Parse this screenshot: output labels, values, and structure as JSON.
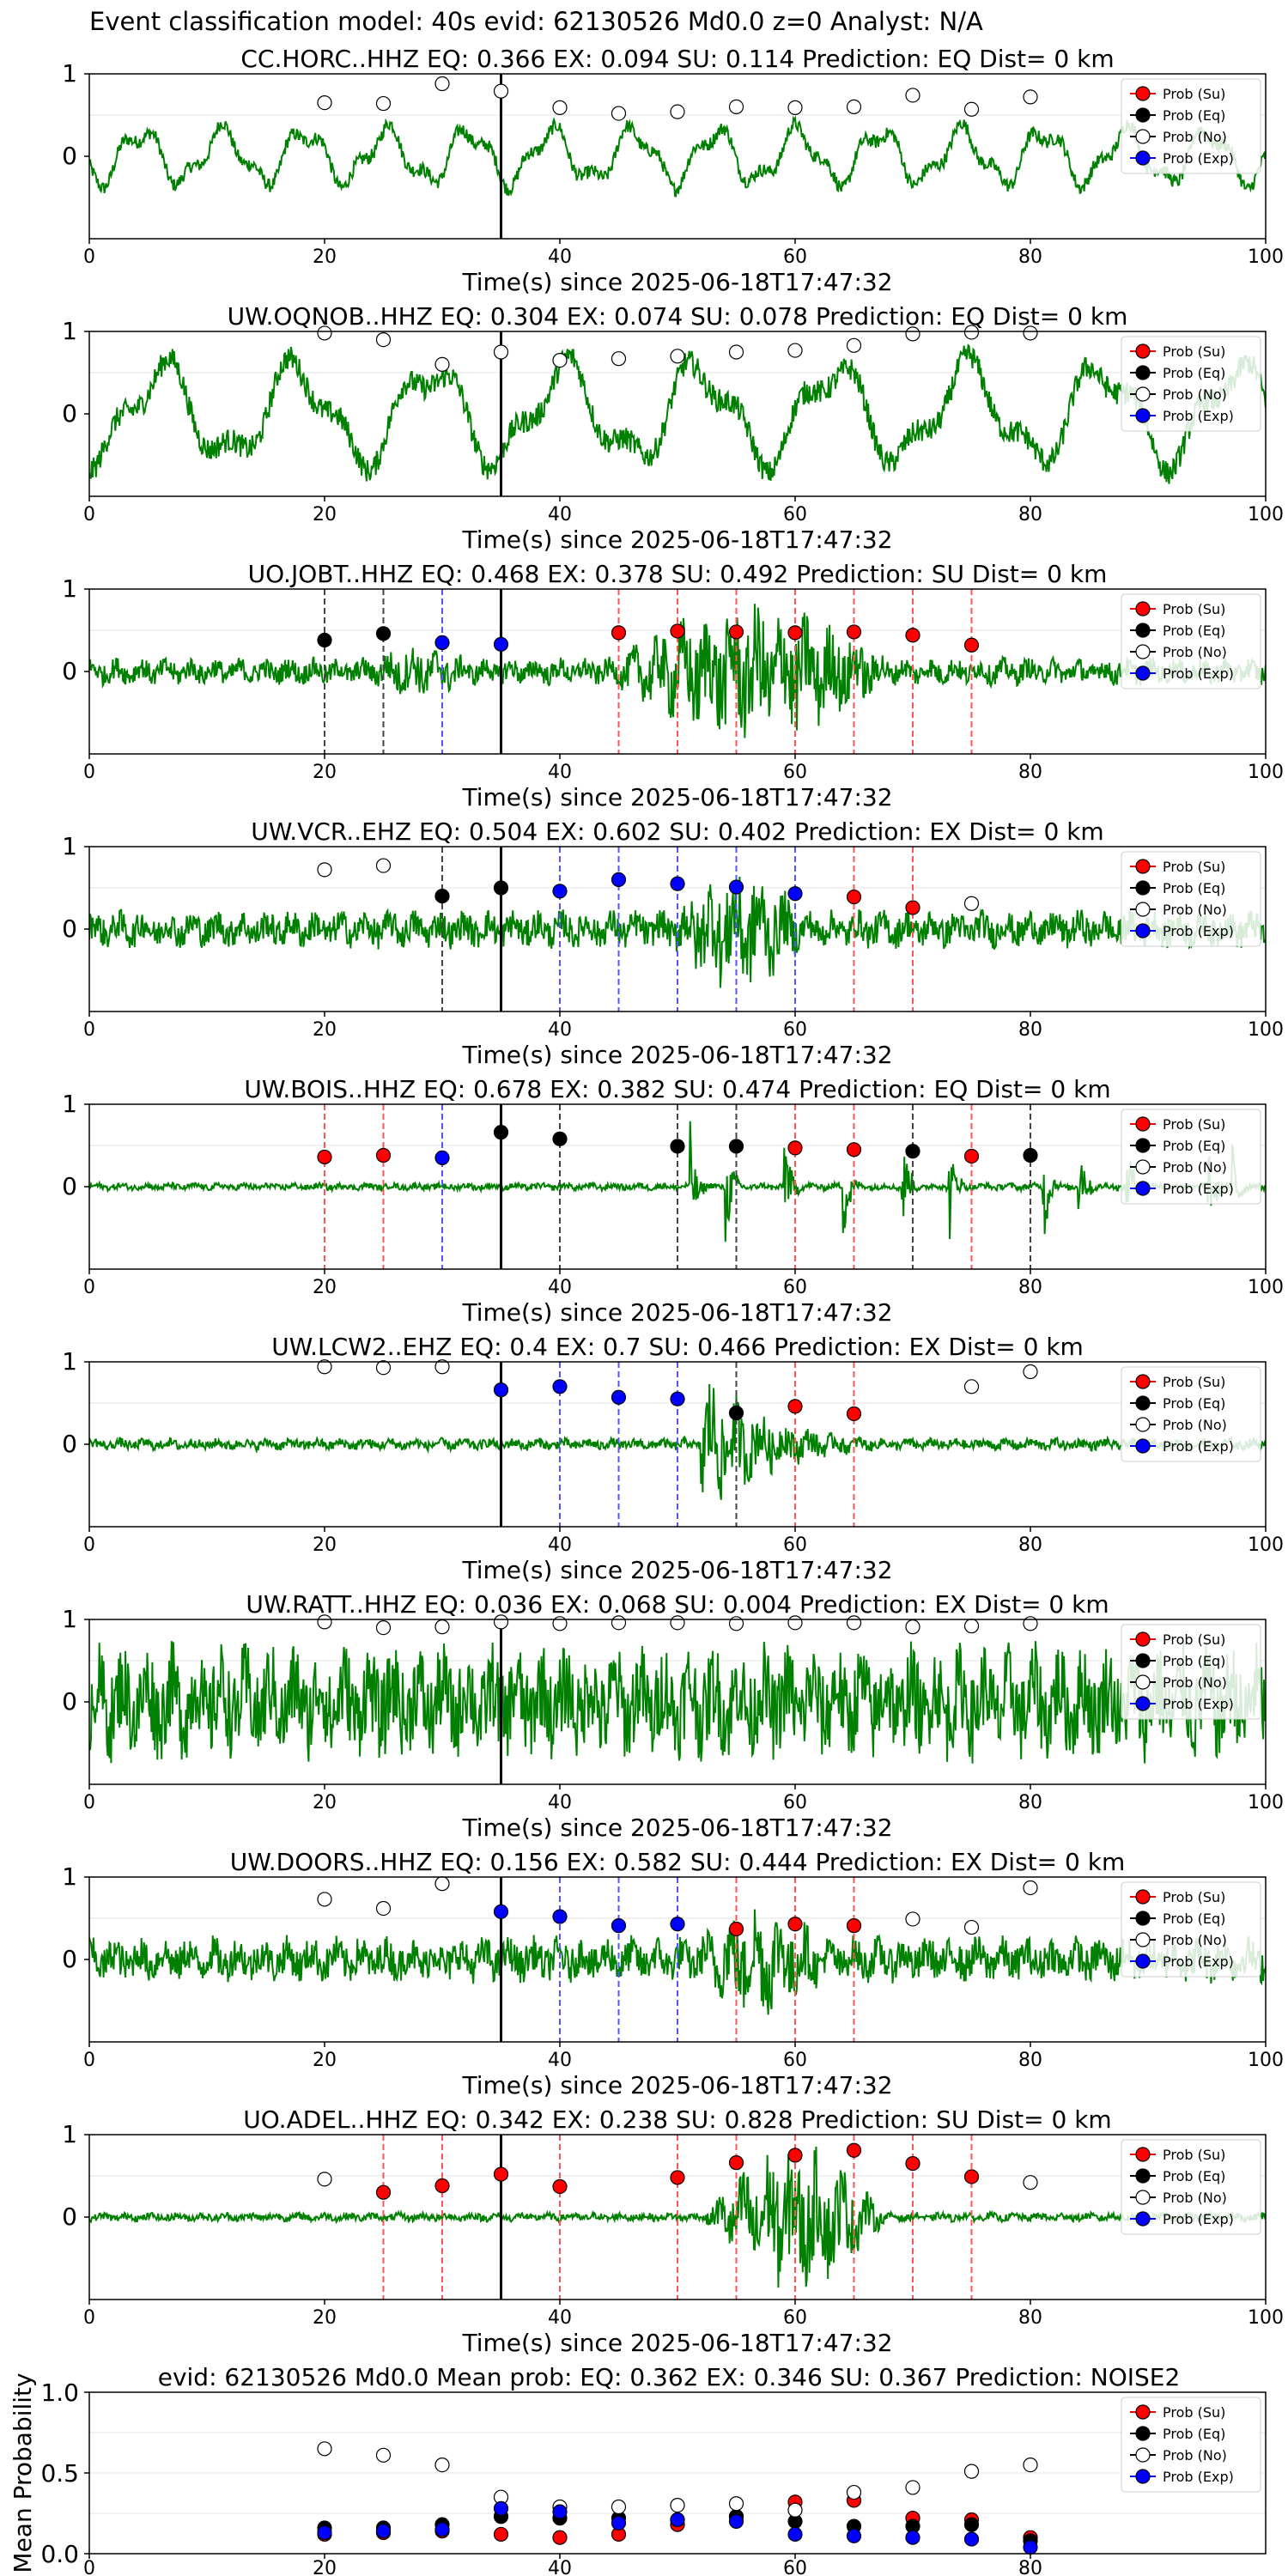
{
  "suptitle": "Event classification model: 40s evid: 62130526 Md0.0 z=0 Analyst: N/A",
  "xlabel": "Time(s) since 2025-06-18T17:47:32",
  "legend_labels": [
    "Prob (Su)",
    "Prob (Eq)",
    "Prob (No)",
    "Prob (Exp)"
  ],
  "colors": {
    "su": "#ff0000",
    "eq": "#000000",
    "no": "#ffffff",
    "exp": "#0000ff",
    "trace": "#008000"
  },
  "chart_data": [
    {
      "type": "line",
      "title": "CC.HORC..HHZ   EQ: 0.366  EX: 0.094  SU: 0.114   Prediction: EQ    Dist= 0 km",
      "xlabel": "Time(s) since 2025-06-18T17:47:32",
      "xlim": [
        0,
        100
      ],
      "ylim": [
        -1,
        1
      ],
      "xticks": [
        0,
        20,
        40,
        60,
        80,
        100
      ],
      "yticks": [
        0,
        1
      ],
      "legend_position": "top-right",
      "event_time": 35,
      "trace_amplitude": 0.45,
      "trace_character": "mid",
      "windows": [
        {
          "t": 20,
          "cls": "no",
          "p": 0.65
        },
        {
          "t": 25,
          "cls": "no",
          "p": 0.64
        },
        {
          "t": 30,
          "cls": "no",
          "p": 0.88
        },
        {
          "t": 35,
          "cls": "no",
          "p": 0.79
        },
        {
          "t": 40,
          "cls": "no",
          "p": 0.59
        },
        {
          "t": 45,
          "cls": "no",
          "p": 0.52
        },
        {
          "t": 50,
          "cls": "no",
          "p": 0.54
        },
        {
          "t": 55,
          "cls": "no",
          "p": 0.6
        },
        {
          "t": 60,
          "cls": "no",
          "p": 0.59
        },
        {
          "t": 65,
          "cls": "no",
          "p": 0.6
        },
        {
          "t": 70,
          "cls": "no",
          "p": 0.74
        },
        {
          "t": 75,
          "cls": "no",
          "p": 0.57
        },
        {
          "t": 80,
          "cls": "no",
          "p": 0.72
        }
      ]
    },
    {
      "type": "line",
      "title": "UW.OQNOB..HHZ   EQ: 0.304  EX: 0.074  SU: 0.078   Prediction: EQ    Dist= 0 km",
      "xlabel": "Time(s) since 2025-06-18T17:47:32",
      "xlim": [
        0,
        100
      ],
      "ylim": [
        -1,
        1
      ],
      "xticks": [
        0,
        20,
        40,
        60,
        80,
        100
      ],
      "yticks": [
        0,
        1
      ],
      "legend_position": "top-right",
      "event_time": 35,
      "trace_amplitude": 0.8,
      "trace_character": "low",
      "windows": [
        {
          "t": 20,
          "cls": "no",
          "p": 0.98
        },
        {
          "t": 25,
          "cls": "no",
          "p": 0.9
        },
        {
          "t": 30,
          "cls": "no",
          "p": 0.6
        },
        {
          "t": 35,
          "cls": "no",
          "p": 0.75
        },
        {
          "t": 40,
          "cls": "no",
          "p": 0.65
        },
        {
          "t": 45,
          "cls": "no",
          "p": 0.67
        },
        {
          "t": 50,
          "cls": "no",
          "p": 0.7
        },
        {
          "t": 55,
          "cls": "no",
          "p": 0.75
        },
        {
          "t": 60,
          "cls": "no",
          "p": 0.77
        },
        {
          "t": 65,
          "cls": "no",
          "p": 0.83
        },
        {
          "t": 70,
          "cls": "no",
          "p": 0.97
        },
        {
          "t": 75,
          "cls": "no",
          "p": 0.99
        },
        {
          "t": 80,
          "cls": "no",
          "p": 0.98
        }
      ]
    },
    {
      "type": "line",
      "title": "UO.JOBT..HHZ   EQ: 0.468  EX: 0.378  SU: 0.492   Prediction: SU    Dist= 0 km",
      "xlabel": "Time(s) since 2025-06-18T17:47:32",
      "xlim": [
        0,
        100
      ],
      "ylim": [
        -1,
        1
      ],
      "xticks": [
        0,
        20,
        40,
        60,
        80,
        100
      ],
      "yticks": [
        0,
        1
      ],
      "legend_position": "top-right",
      "event_time": 35,
      "trace_amplitude": 0.18,
      "trace_character": "high",
      "bursts": [
        {
          "t0": 22,
          "t1": 34,
          "amp": 0.35
        },
        {
          "t0": 43,
          "t1": 70,
          "amp": 0.9
        }
      ],
      "windows": [
        {
          "t": 20,
          "cls": "eq",
          "p": 0.38
        },
        {
          "t": 25,
          "cls": "eq",
          "p": 0.46
        },
        {
          "t": 30,
          "cls": "exp",
          "p": 0.35
        },
        {
          "t": 35,
          "cls": "exp",
          "p": 0.33
        },
        {
          "t": 45,
          "cls": "su",
          "p": 0.47
        },
        {
          "t": 50,
          "cls": "su",
          "p": 0.49
        },
        {
          "t": 55,
          "cls": "su",
          "p": 0.48
        },
        {
          "t": 60,
          "cls": "su",
          "p": 0.47
        },
        {
          "t": 65,
          "cls": "su",
          "p": 0.48
        },
        {
          "t": 70,
          "cls": "su",
          "p": 0.44
        },
        {
          "t": 75,
          "cls": "su",
          "p": 0.32
        }
      ]
    },
    {
      "type": "line",
      "title": "UW.VCR..EHZ   EQ: 0.504  EX: 0.602  SU: 0.402   Prediction: EX    Dist= 0 km",
      "xlabel": "Time(s) since 2025-06-18T17:47:32",
      "xlim": [
        0,
        100
      ],
      "ylim": [
        -1,
        1
      ],
      "xticks": [
        0,
        20,
        40,
        60,
        80,
        100
      ],
      "yticks": [
        0,
        1
      ],
      "legend_position": "top-right",
      "event_time": 35,
      "trace_amplitude": 0.25,
      "trace_character": "high",
      "bursts": [
        {
          "t0": 48,
          "t1": 62,
          "amp": 0.8
        }
      ],
      "windows": [
        {
          "t": 20,
          "cls": "no",
          "p": 0.72
        },
        {
          "t": 25,
          "cls": "no",
          "p": 0.77
        },
        {
          "t": 30,
          "cls": "eq",
          "p": 0.4
        },
        {
          "t": 35,
          "cls": "eq",
          "p": 0.5
        },
        {
          "t": 40,
          "cls": "exp",
          "p": 0.46
        },
        {
          "t": 45,
          "cls": "exp",
          "p": 0.6
        },
        {
          "t": 50,
          "cls": "exp",
          "p": 0.55
        },
        {
          "t": 55,
          "cls": "exp",
          "p": 0.51
        },
        {
          "t": 60,
          "cls": "exp",
          "p": 0.43
        },
        {
          "t": 65,
          "cls": "su",
          "p": 0.39
        },
        {
          "t": 70,
          "cls": "su",
          "p": 0.26
        },
        {
          "t": 75,
          "cls": "no",
          "p": 0.31
        }
      ]
    },
    {
      "type": "line",
      "title": "UW.BOIS..HHZ   EQ: 0.678  EX: 0.382  SU: 0.474   Prediction: EQ    Dist= 0 km",
      "xlabel": "Time(s) since 2025-06-18T17:47:32",
      "xlim": [
        0,
        100
      ],
      "ylim": [
        -1,
        1
      ],
      "xticks": [
        0,
        20,
        40,
        60,
        80,
        100
      ],
      "yticks": [
        0,
        1
      ],
      "legend_position": "top-right",
      "event_time": 35,
      "trace_amplitude": 0.05,
      "trace_character": "high",
      "spikes": [
        51,
        54,
        59,
        64,
        69,
        73,
        81,
        84,
        88,
        95,
        97
      ],
      "windows": [
        {
          "t": 20,
          "cls": "su",
          "p": 0.36
        },
        {
          "t": 25,
          "cls": "su",
          "p": 0.38
        },
        {
          "t": 30,
          "cls": "exp",
          "p": 0.35
        },
        {
          "t": 35,
          "cls": "eq",
          "p": 0.66
        },
        {
          "t": 40,
          "cls": "eq",
          "p": 0.58
        },
        {
          "t": 50,
          "cls": "eq",
          "p": 0.49
        },
        {
          "t": 55,
          "cls": "eq",
          "p": 0.49
        },
        {
          "t": 60,
          "cls": "su",
          "p": 0.47
        },
        {
          "t": 65,
          "cls": "su",
          "p": 0.45
        },
        {
          "t": 70,
          "cls": "eq",
          "p": 0.43
        },
        {
          "t": 75,
          "cls": "su",
          "p": 0.37
        },
        {
          "t": 80,
          "cls": "eq",
          "p": 0.38
        }
      ]
    },
    {
      "type": "line",
      "title": "UW.LCW2..EHZ   EQ: 0.4  EX: 0.7  SU: 0.466   Prediction: EX    Dist= 0 km",
      "xlabel": "Time(s) since 2025-06-18T17:47:32",
      "xlim": [
        0,
        100
      ],
      "ylim": [
        -1,
        1
      ],
      "xticks": [
        0,
        20,
        40,
        60,
        80,
        100
      ],
      "yticks": [
        0,
        1
      ],
      "legend_position": "top-right",
      "event_time": 35,
      "trace_amplitude": 0.08,
      "trace_character": "high",
      "bursts": [
        {
          "t0": 52,
          "t1": 70,
          "amp": 1.0,
          "decay": true
        }
      ],
      "windows": [
        {
          "t": 20,
          "cls": "no",
          "p": 0.94
        },
        {
          "t": 25,
          "cls": "no",
          "p": 0.93
        },
        {
          "t": 30,
          "cls": "no",
          "p": 0.94
        },
        {
          "t": 35,
          "cls": "exp",
          "p": 0.66
        },
        {
          "t": 40,
          "cls": "exp",
          "p": 0.7
        },
        {
          "t": 45,
          "cls": "exp",
          "p": 0.57
        },
        {
          "t": 50,
          "cls": "exp",
          "p": 0.55
        },
        {
          "t": 55,
          "cls": "eq",
          "p": 0.38
        },
        {
          "t": 60,
          "cls": "su",
          "p": 0.46
        },
        {
          "t": 65,
          "cls": "su",
          "p": 0.37
        },
        {
          "t": 75,
          "cls": "no",
          "p": 0.7
        },
        {
          "t": 80,
          "cls": "no",
          "p": 0.88
        }
      ]
    },
    {
      "type": "line",
      "title": "UW.RATT..HHZ   EQ: 0.036  EX: 0.068  SU: 0.004   Prediction: EX    Dist= 0 km",
      "xlabel": "Time(s) since 2025-06-18T17:47:32",
      "xlim": [
        0,
        100
      ],
      "ylim": [
        -1,
        1
      ],
      "xticks": [
        0,
        20,
        40,
        60,
        80,
        100
      ],
      "yticks": [
        0,
        1
      ],
      "legend_position": "top-right",
      "event_time": 35,
      "trace_amplitude": 0.75,
      "trace_character": "high",
      "windows": [
        {
          "t": 20,
          "cls": "no",
          "p": 0.97
        },
        {
          "t": 25,
          "cls": "no",
          "p": 0.9
        },
        {
          "t": 30,
          "cls": "no",
          "p": 0.91
        },
        {
          "t": 35,
          "cls": "no",
          "p": 0.97
        },
        {
          "t": 40,
          "cls": "no",
          "p": 0.95
        },
        {
          "t": 45,
          "cls": "no",
          "p": 0.96
        },
        {
          "t": 50,
          "cls": "no",
          "p": 0.96
        },
        {
          "t": 55,
          "cls": "no",
          "p": 0.95
        },
        {
          "t": 60,
          "cls": "no",
          "p": 0.96
        },
        {
          "t": 65,
          "cls": "no",
          "p": 0.96
        },
        {
          "t": 70,
          "cls": "no",
          "p": 0.91
        },
        {
          "t": 75,
          "cls": "no",
          "p": 0.92
        },
        {
          "t": 80,
          "cls": "no",
          "p": 0.95
        }
      ]
    },
    {
      "type": "line",
      "title": "UW.DOORS..HHZ   EQ: 0.156  EX: 0.582  SU: 0.444   Prediction: EX    Dist= 0 km",
      "xlabel": "Time(s) since 2025-06-18T17:47:32",
      "xlim": [
        0,
        100
      ],
      "ylim": [
        -1,
        1
      ],
      "xticks": [
        0,
        20,
        40,
        60,
        80,
        100
      ],
      "yticks": [
        0,
        1
      ],
      "legend_position": "top-right",
      "event_time": 35,
      "trace_amplitude": 0.3,
      "trace_character": "high",
      "bursts": [
        {
          "t0": 50,
          "t1": 64,
          "amp": 0.75
        }
      ],
      "windows": [
        {
          "t": 20,
          "cls": "no",
          "p": 0.73
        },
        {
          "t": 25,
          "cls": "no",
          "p": 0.62
        },
        {
          "t": 30,
          "cls": "no",
          "p": 0.92
        },
        {
          "t": 35,
          "cls": "exp",
          "p": 0.58
        },
        {
          "t": 40,
          "cls": "exp",
          "p": 0.52
        },
        {
          "t": 45,
          "cls": "exp",
          "p": 0.41
        },
        {
          "t": 50,
          "cls": "exp",
          "p": 0.43
        },
        {
          "t": 55,
          "cls": "su",
          "p": 0.37
        },
        {
          "t": 60,
          "cls": "su",
          "p": 0.43
        },
        {
          "t": 65,
          "cls": "su",
          "p": 0.41
        },
        {
          "t": 70,
          "cls": "no",
          "p": 0.49
        },
        {
          "t": 75,
          "cls": "no",
          "p": 0.39
        },
        {
          "t": 80,
          "cls": "no",
          "p": 0.87
        }
      ]
    },
    {
      "type": "line",
      "title": "UO.ADEL..HHZ   EQ: 0.342  EX: 0.238  SU: 0.828   Prediction: SU    Dist= 0 km",
      "xlabel": "Time(s) since 2025-06-18T17:47:32",
      "xlim": [
        0,
        100
      ],
      "ylim": [
        -1,
        1
      ],
      "xticks": [
        0,
        20,
        40,
        60,
        80,
        100
      ],
      "yticks": [
        0,
        1
      ],
      "legend_position": "top-right",
      "event_time": 35,
      "trace_amplitude": 0.06,
      "trace_character": "high",
      "bursts": [
        {
          "t0": 52,
          "t1": 68,
          "amp": 0.95
        }
      ],
      "windows": [
        {
          "t": 20,
          "cls": "no",
          "p": 0.46
        },
        {
          "t": 25,
          "cls": "su",
          "p": 0.3
        },
        {
          "t": 30,
          "cls": "su",
          "p": 0.38
        },
        {
          "t": 35,
          "cls": "su",
          "p": 0.52
        },
        {
          "t": 40,
          "cls": "su",
          "p": 0.37
        },
        {
          "t": 50,
          "cls": "su",
          "p": 0.48
        },
        {
          "t": 55,
          "cls": "su",
          "p": 0.66
        },
        {
          "t": 60,
          "cls": "su",
          "p": 0.75
        },
        {
          "t": 65,
          "cls": "su",
          "p": 0.81
        },
        {
          "t": 70,
          "cls": "su",
          "p": 0.65
        },
        {
          "t": 75,
          "cls": "su",
          "p": 0.49
        },
        {
          "t": 80,
          "cls": "no",
          "p": 0.42
        }
      ]
    },
    {
      "type": "scatter",
      "title": "evid: 62130526  Md0.0   Mean prob:    EQ: 0.362  EX: 0.346  SU: 0.367   Prediction: NOISE2",
      "ylabel": "Mean Probability",
      "xlim": [
        0,
        100
      ],
      "ylim": [
        0,
        1
      ],
      "xticks": [
        0,
        20,
        40,
        60,
        80
      ],
      "yticks": [
        0,
        0.5,
        1.0
      ],
      "ytick_labels": [
        "0.0",
        "0.5",
        "1.0"
      ],
      "legend_position": "top-right",
      "x": [
        20,
        25,
        30,
        35,
        40,
        45,
        50,
        55,
        60,
        65,
        70,
        75,
        80
      ],
      "series": [
        {
          "name": "Prob (Su)",
          "cls": "su",
          "values": [
            0.12,
            0.13,
            0.14,
            0.12,
            0.1,
            0.12,
            0.18,
            0.23,
            0.32,
            0.33,
            0.22,
            0.21,
            0.1
          ]
        },
        {
          "name": "Prob (Eq)",
          "cls": "eq",
          "values": [
            0.16,
            0.16,
            0.18,
            0.23,
            0.22,
            0.22,
            0.21,
            0.23,
            0.2,
            0.17,
            0.17,
            0.18,
            0.08
          ]
        },
        {
          "name": "Prob (No)",
          "cls": "no",
          "values": [
            0.65,
            0.61,
            0.55,
            0.35,
            0.29,
            0.29,
            0.3,
            0.31,
            0.27,
            0.38,
            0.41,
            0.51,
            0.55
          ]
        },
        {
          "name": "Prob (Exp)",
          "cls": "exp",
          "values": [
            0.13,
            0.14,
            0.15,
            0.28,
            0.26,
            0.19,
            0.21,
            0.2,
            0.12,
            0.11,
            0.1,
            0.09,
            0.04
          ]
        }
      ]
    }
  ]
}
